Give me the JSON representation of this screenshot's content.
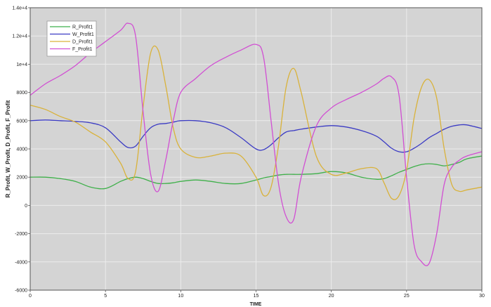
{
  "chart_data": {
    "type": "line",
    "xlabel": "TIME",
    "ylabel": "R_Profit, W_Profit, D_Profit, F_Profit",
    "xlim": [
      0,
      30
    ],
    "ylim": [
      -6000,
      14000
    ],
    "x_ticks": [
      "0",
      "5",
      "10",
      "15",
      "20",
      "25",
      "30"
    ],
    "y_ticks": [
      "-6000",
      "-4000",
      "-2000",
      "0",
      "2000",
      "4000",
      "6000",
      "8000",
      "1e+4",
      "1.2e+4",
      "1.4e+4"
    ],
    "grid": true,
    "legend_position": "top-left",
    "background_color": "#d4d4d4",
    "x": [
      0,
      1,
      2,
      3,
      4,
      5,
      6,
      6.5,
      7,
      7.5,
      8,
      8.5,
      9,
      9.5,
      10,
      11,
      12,
      13,
      14,
      15,
      15.5,
      16,
      16.5,
      17,
      17.5,
      18,
      19,
      20,
      21,
      22,
      23,
      23.5,
      24,
      24.5,
      25,
      25.5,
      26,
      26.5,
      27,
      27.5,
      28,
      28.5,
      29,
      30
    ],
    "series": [
      {
        "name": "R_Profit1",
        "color": "#3fb04a",
        "values": [
          2000,
          2000,
          1900,
          1700,
          1300,
          1200,
          1700,
          1900,
          2000,
          1900,
          1700,
          1550,
          1550,
          1600,
          1700,
          1800,
          1700,
          1550,
          1550,
          1800,
          1950,
          2050,
          2150,
          2200,
          2200,
          2200,
          2250,
          2400,
          2300,
          2000,
          1850,
          1900,
          2100,
          2350,
          2550,
          2750,
          2900,
          2950,
          2900,
          2800,
          2900,
          3050,
          3300,
          3500
        ]
      },
      {
        "name": "W_Profit1",
        "color": "#3b3bc4",
        "values": [
          6000,
          6050,
          6000,
          5950,
          5850,
          5500,
          4500,
          4100,
          4200,
          4900,
          5500,
          5750,
          5800,
          5900,
          6000,
          6000,
          5850,
          5500,
          4800,
          4000,
          3950,
          4300,
          4800,
          5200,
          5300,
          5400,
          5550,
          5650,
          5550,
          5300,
          4900,
          4500,
          4050,
          3800,
          3800,
          4050,
          4400,
          4800,
          5100,
          5400,
          5600,
          5700,
          5700,
          5450
        ]
      },
      {
        "name": "D_Profit1",
        "color": "#d9b23a",
        "values": [
          7100,
          6800,
          6300,
          5900,
          5200,
          4500,
          3000,
          1900,
          2400,
          7000,
          10800,
          11000,
          8500,
          5500,
          4000,
          3400,
          3500,
          3700,
          3500,
          2000,
          700,
          1300,
          4300,
          8400,
          9700,
          8000,
          3500,
          2200,
          2300,
          2600,
          2600,
          1600,
          500,
          700,
          2500,
          6200,
          8400,
          8900,
          7600,
          4000,
          1500,
          1000,
          1100,
          1300
        ]
      },
      {
        "name": "F_Profit1",
        "color": "#d14fd3",
        "values": [
          7800,
          8600,
          9200,
          9900,
          10800,
          11600,
          12400,
          12900,
          12000,
          6600,
          2200,
          1000,
          3200,
          6000,
          8000,
          9000,
          9900,
          10500,
          11000,
          11400,
          10500,
          6000,
          1500,
          -800,
          -1000,
          2000,
          5600,
          6900,
          7500,
          8000,
          8600,
          9000,
          9100,
          7800,
          2000,
          -2800,
          -4000,
          -4100,
          -2000,
          1500,
          2700,
          3200,
          3500,
          3800
        ]
      }
    ]
  }
}
